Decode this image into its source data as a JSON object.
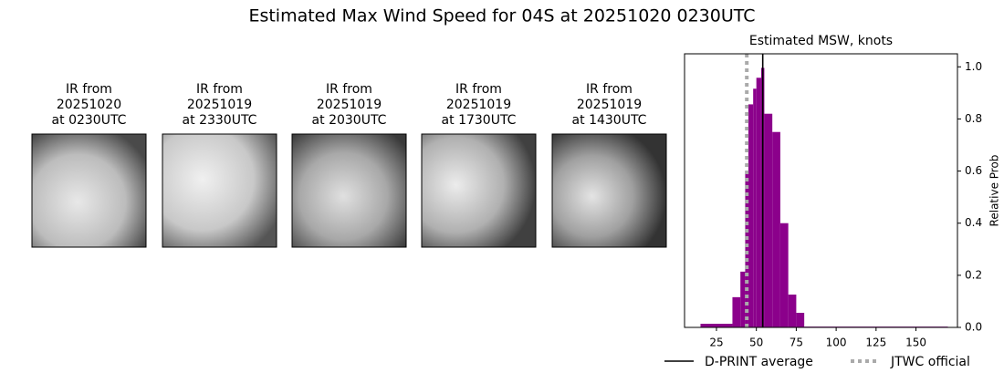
{
  "title": "Estimated Max Wind Speed for 04S at 20251020 0230UTC",
  "panels": [
    {
      "lines": [
        "IR from",
        "20251020",
        "at 0230UTC"
      ]
    },
    {
      "lines": [
        "IR from",
        "20251019",
        "at 2330UTC"
      ]
    },
    {
      "lines": [
        "IR from",
        "20251019",
        "at 2030UTC"
      ]
    },
    {
      "lines": [
        "IR from",
        "20251019",
        "at 1730UTC"
      ]
    },
    {
      "lines": [
        "IR from",
        "20251019",
        "at 1430UTC"
      ]
    }
  ],
  "chart_data": {
    "type": "histogram",
    "title": "Estimated MSW, knots",
    "y_label": "Relative Prob",
    "bins": [
      15,
      35,
      40,
      43,
      45,
      48,
      50,
      53,
      55,
      60,
      65,
      70,
      75,
      80,
      170
    ],
    "values": [
      0.014,
      0.116,
      0.214,
      0.6,
      0.856,
      0.916,
      0.958,
      0.996,
      0.82,
      0.75,
      0.4,
      0.126,
      0.056,
      0.003
    ],
    "color": "#8b008b",
    "xlim": [
      5,
      176
    ],
    "xticks": [
      25,
      50,
      75,
      100,
      125,
      150
    ],
    "ylim": [
      0,
      1.05
    ],
    "yticks": [
      {
        "value": 0,
        "label": "0.0"
      },
      0.2,
      0.4,
      0.6,
      0.8,
      {
        "value": 1,
        "label": "1.0"
      }
    ],
    "reference_lines": [
      {
        "name": "D-PRINT average",
        "value": 54,
        "color": "#000000",
        "style": "solid"
      },
      {
        "name": "JTWC official",
        "value": 44,
        "color": "#aaaaaa",
        "style": "dotted"
      }
    ]
  }
}
